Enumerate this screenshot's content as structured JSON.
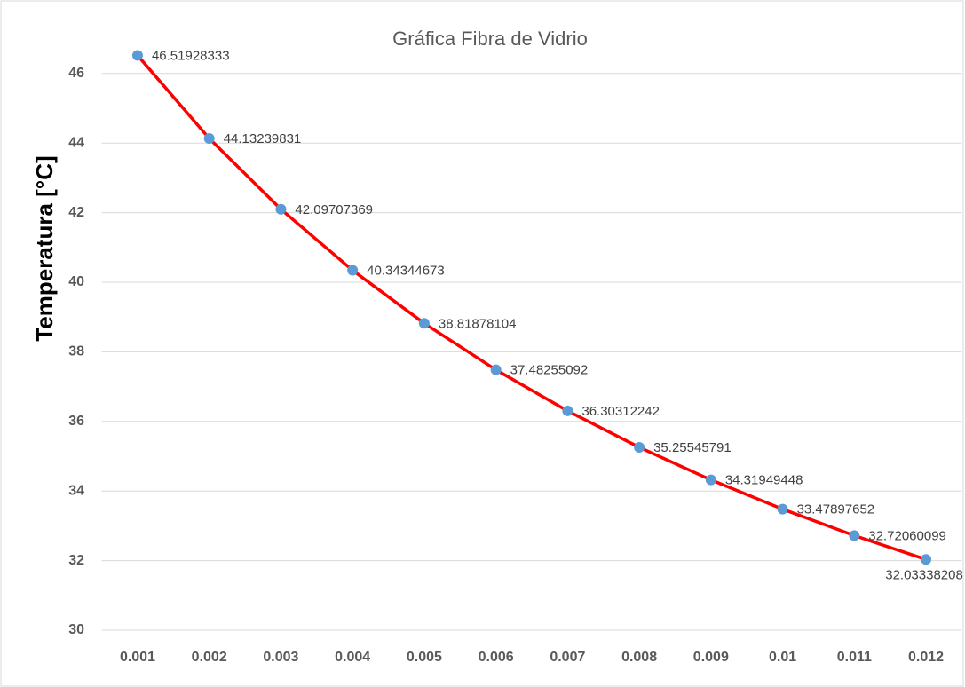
{
  "chart_data": {
    "type": "line",
    "title": "Gráfica Fibra de Vidrio",
    "y_label": "Temperatura [°C]",
    "categories": [
      "0.001",
      "0.002",
      "0.003",
      "0.004",
      "0.005",
      "0.006",
      "0.007",
      "0.008",
      "0.009",
      "0.01",
      "0.011",
      "0.012"
    ],
    "series": [
      {
        "name": "Temperatura",
        "line_color": "#ff0000",
        "marker_color": "#5b9bd5",
        "values": [
          46.51928333,
          44.13239831,
          42.09707369,
          40.34344673,
          38.81878104,
          37.48255092,
          36.30312242,
          35.25545791,
          34.31949448,
          33.47897652,
          32.72060099,
          32.03338208
        ]
      }
    ],
    "ylim": [
      30,
      47
    ],
    "yticks": [
      30,
      32,
      34,
      36,
      38,
      40,
      42,
      44,
      46
    ],
    "grid": true
  }
}
